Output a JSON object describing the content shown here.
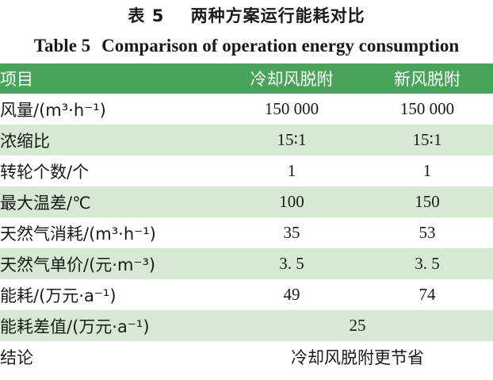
{
  "title_cn": {
    "number": "表 5",
    "text": "两种方案运行能耗对比"
  },
  "title_en": {
    "number": "Table 5",
    "text": "Comparison of operation energy consumption"
  },
  "header": {
    "item": "项目",
    "col1": "冷却风脱附",
    "col2": "新风脱附"
  },
  "rows": [
    {
      "label": "风量/(m³·h⁻¹)",
      "v1": "150 000",
      "v2": "150 000"
    },
    {
      "label": "浓缩比",
      "v1": "15∶1",
      "v2": "15∶1"
    },
    {
      "label": "转轮个数/个",
      "v1": "1",
      "v2": "1"
    },
    {
      "label": "最大温差/℃",
      "v1": "100",
      "v2": "150"
    },
    {
      "label": "天然气消耗/(m³·h⁻¹)",
      "v1": "35",
      "v2": "53"
    },
    {
      "label": "天然气单价/(元·m⁻³)",
      "v1": "3. 5",
      "v2": "3. 5"
    },
    {
      "label": "能耗/(万元·a⁻¹)",
      "v1": "49",
      "v2": "74"
    },
    {
      "label": "能耗差值/(万元·a⁻¹)",
      "v": "25"
    },
    {
      "label": "结论",
      "v": "冷却风脱附更节省"
    }
  ],
  "colors": {
    "header_bg": "#4aa35a",
    "shade_bg": "#d6ead3",
    "header_text": "#ffffff"
  }
}
